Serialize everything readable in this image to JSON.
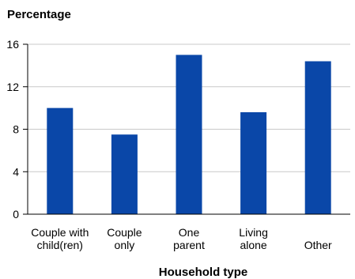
{
  "chart_data": {
    "type": "bar",
    "ylabel": "Percentage",
    "xlabel": "Household type",
    "categories": [
      [
        "Couple with",
        "child(ren)"
      ],
      [
        "Couple",
        "only"
      ],
      [
        "One",
        "parent"
      ],
      [
        "Living",
        "alone"
      ],
      [
        "Other"
      ]
    ],
    "values": [
      10.0,
      7.5,
      15.0,
      9.6,
      14.4
    ],
    "yticks": [
      0,
      4,
      8,
      12,
      16
    ],
    "ylim": [
      0,
      16
    ],
    "grid": "horizontal",
    "bar_color": "#0a47a8"
  }
}
